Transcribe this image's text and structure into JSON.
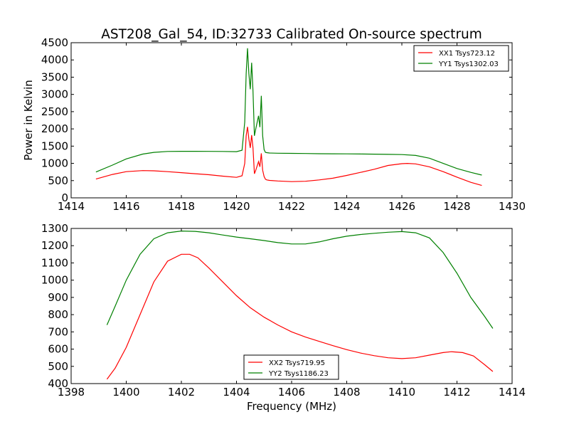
{
  "figure": {
    "title": "AST208_Gal_54, ID:32733 Calibrated On-source spectrum"
  },
  "chart_data": [
    {
      "type": "line",
      "title": "AST208_Gal_54, ID:32733 Calibrated On-source spectrum",
      "xlabel": "",
      "ylabel": "Power in Kelvin",
      "xlim": [
        1414,
        1430
      ],
      "ylim": [
        0,
        4500
      ],
      "xticks": [
        1414,
        1416,
        1418,
        1420,
        1422,
        1424,
        1426,
        1428,
        1430
      ],
      "yticks": [
        0,
        500,
        1000,
        1500,
        2000,
        2500,
        3000,
        3500,
        4000,
        4500
      ],
      "grid": false,
      "legend_position": "top-right",
      "series": [
        {
          "name": "XX1 Tsys723.12",
          "color": "#ff0000",
          "x": [
            1414.9,
            1415.5,
            1416.0,
            1416.6,
            1417.0,
            1417.5,
            1418.0,
            1418.5,
            1419.0,
            1419.5,
            1420.0,
            1420.2,
            1420.3,
            1420.35,
            1420.4,
            1420.45,
            1420.5,
            1420.55,
            1420.6,
            1420.65,
            1420.7,
            1420.8,
            1420.85,
            1420.9,
            1420.95,
            1421.0,
            1421.05,
            1421.1,
            1421.2,
            1421.5,
            1422.0,
            1422.5,
            1423.0,
            1423.5,
            1424.0,
            1424.5,
            1425.0,
            1425.5,
            1426.0,
            1426.2,
            1426.5,
            1427.0,
            1427.5,
            1428.0,
            1428.5,
            1428.9
          ],
          "y": [
            545,
            680,
            760,
            790,
            785,
            760,
            730,
            700,
            670,
            630,
            595,
            640,
            1000,
            1800,
            2060,
            1700,
            1450,
            1820,
            1450,
            700,
            800,
            1050,
            900,
            1290,
            800,
            620,
            540,
            520,
            505,
            490,
            470,
            480,
            520,
            570,
            650,
            740,
            830,
            940,
            990,
            1000,
            985,
            900,
            760,
            600,
            450,
            360
          ]
        },
        {
          "name": "YY1 Tsys1302.03",
          "color": "#008000",
          "x": [
            1414.9,
            1415.5,
            1416.0,
            1416.6,
            1417.0,
            1417.5,
            1418.0,
            1418.5,
            1419.0,
            1419.5,
            1420.0,
            1420.2,
            1420.3,
            1420.35,
            1420.4,
            1420.45,
            1420.5,
            1420.55,
            1420.6,
            1420.65,
            1420.7,
            1420.8,
            1420.85,
            1420.9,
            1420.95,
            1421.0,
            1421.05,
            1421.1,
            1421.2,
            1421.5,
            1422.0,
            1422.5,
            1423.0,
            1423.5,
            1424.0,
            1424.5,
            1425.0,
            1425.5,
            1426.0,
            1426.5,
            1427.0,
            1427.5,
            1428.0,
            1428.5,
            1428.9
          ],
          "y": [
            750,
            950,
            1130,
            1270,
            1320,
            1345,
            1350,
            1350,
            1348,
            1345,
            1340,
            1380,
            2200,
            3600,
            4340,
            3600,
            3150,
            3920,
            3100,
            1800,
            2000,
            2380,
            2050,
            2960,
            1800,
            1400,
            1320,
            1310,
            1300,
            1295,
            1290,
            1285,
            1280,
            1278,
            1275,
            1272,
            1268,
            1262,
            1255,
            1230,
            1150,
            1000,
            850,
            740,
            660
          ]
        }
      ]
    },
    {
      "type": "line",
      "title": "",
      "xlabel": "Frequency (MHz)",
      "ylabel": "",
      "xlim": [
        1398,
        1414
      ],
      "ylim": [
        400,
        1300
      ],
      "xticks": [
        1398,
        1400,
        1402,
        1404,
        1406,
        1408,
        1410,
        1412,
        1414
      ],
      "yticks": [
        400,
        500,
        600,
        700,
        800,
        900,
        1000,
        1100,
        1200,
        1300
      ],
      "grid": false,
      "legend_position": "bottom-center",
      "series": [
        {
          "name": "XX2 Tsys719.95",
          "color": "#ff0000",
          "x": [
            1399.3,
            1399.6,
            1400.0,
            1400.5,
            1401.0,
            1401.5,
            1402.0,
            1402.3,
            1402.6,
            1403.0,
            1403.5,
            1404.0,
            1404.5,
            1405.0,
            1405.5,
            1406.0,
            1406.5,
            1407.0,
            1407.5,
            1408.0,
            1408.5,
            1409.0,
            1409.5,
            1410.0,
            1410.5,
            1411.0,
            1411.5,
            1411.8,
            1412.2,
            1412.6,
            1413.0,
            1413.3
          ],
          "y": [
            425,
            490,
            610,
            800,
            990,
            1110,
            1150,
            1150,
            1130,
            1070,
            990,
            910,
            840,
            785,
            740,
            700,
            670,
            645,
            620,
            597,
            577,
            562,
            550,
            545,
            550,
            565,
            580,
            585,
            580,
            560,
            510,
            470
          ]
        },
        {
          "name": "YY2 Tsys1186.23",
          "color": "#008000",
          "x": [
            1399.3,
            1399.6,
            1400.0,
            1400.5,
            1401.0,
            1401.5,
            1402.0,
            1402.5,
            1403.0,
            1403.5,
            1404.0,
            1404.5,
            1405.0,
            1405.5,
            1406.0,
            1406.5,
            1407.0,
            1407.5,
            1408.0,
            1408.5,
            1409.0,
            1409.5,
            1410.0,
            1410.5,
            1411.0,
            1411.5,
            1412.0,
            1412.5,
            1413.0,
            1413.3
          ],
          "y": [
            740,
            850,
            1000,
            1150,
            1240,
            1275,
            1285,
            1283,
            1275,
            1262,
            1250,
            1240,
            1230,
            1218,
            1210,
            1210,
            1222,
            1240,
            1255,
            1265,
            1272,
            1278,
            1282,
            1275,
            1245,
            1160,
            1040,
            900,
            790,
            720
          ]
        }
      ]
    }
  ]
}
